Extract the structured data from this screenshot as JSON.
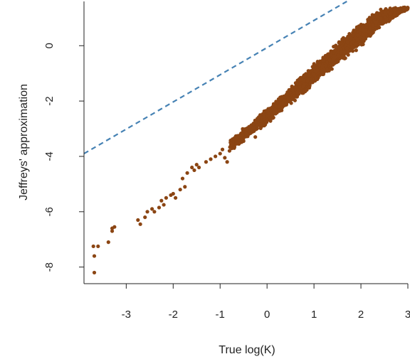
{
  "chart_data": {
    "type": "scatter",
    "title": "",
    "xlabel": "True log(K)",
    "ylabel": "Jeffreys' approximation",
    "xlim": [
      -3.9,
      3.0
    ],
    "ylim": [
      -8.6,
      1.6
    ],
    "xticks": [
      -3,
      -2,
      -1,
      0,
      1,
      2,
      3
    ],
    "yticks": [
      -8,
      -6,
      -4,
      -2,
      0
    ],
    "grid": false,
    "point_color": "#8b4513",
    "line_color": "#4682b4",
    "reference_line": {
      "style": "dashed",
      "from": [
        -3.9,
        -3.9
      ],
      "to": [
        1.7,
        1.6
      ]
    },
    "points": [
      [
        -3.68,
        -8.2
      ],
      [
        -3.7,
        -7.25
      ],
      [
        -3.6,
        -7.25
      ],
      [
        -3.68,
        -7.6
      ],
      [
        -3.38,
        -7.1
      ],
      [
        -3.3,
        -6.6
      ],
      [
        -3.25,
        -6.55
      ],
      [
        -3.3,
        -6.7
      ],
      [
        -2.75,
        -6.3
      ],
      [
        -2.7,
        -6.45
      ],
      [
        -2.6,
        -6.2
      ],
      [
        -2.55,
        -6.0
      ],
      [
        -2.45,
        -5.9
      ],
      [
        -2.4,
        -6.0
      ],
      [
        -2.3,
        -5.85
      ],
      [
        -2.25,
        -5.6
      ],
      [
        -2.2,
        -5.75
      ],
      [
        -2.15,
        -5.5
      ],
      [
        -2.05,
        -5.4
      ],
      [
        -2.0,
        -5.35
      ],
      [
        -1.95,
        -5.5
      ],
      [
        -1.85,
        -5.2
      ],
      [
        -1.75,
        -5.1
      ],
      [
        -1.8,
        -4.8
      ],
      [
        -1.7,
        -4.6
      ],
      [
        -1.6,
        -4.4
      ],
      [
        -1.55,
        -4.5
      ],
      [
        -1.5,
        -4.3
      ],
      [
        -1.45,
        -4.4
      ],
      [
        -1.3,
        -4.2
      ],
      [
        -1.2,
        -4.1
      ],
      [
        -1.1,
        -4.0
      ],
      [
        -1.0,
        -3.9
      ],
      [
        -0.95,
        -3.75
      ],
      [
        -0.9,
        -4.05
      ],
      [
        -0.85,
        -4.2
      ],
      [
        -0.8,
        -3.8
      ],
      [
        -0.75,
        -3.6
      ],
      [
        -0.7,
        -3.7
      ],
      [
        -0.6,
        -3.55
      ],
      [
        -0.55,
        -3.4
      ],
      [
        -0.5,
        -3.45
      ],
      [
        -0.4,
        -3.2
      ],
      [
        -0.3,
        -3.1
      ],
      [
        -0.25,
        -3.3
      ]
    ],
    "dense_band": [
      [
        -0.8,
        -3.9,
        -3.3
      ],
      [
        -0.4,
        -3.4,
        -2.8
      ],
      [
        0.0,
        -2.9,
        -2.2
      ],
      [
        0.4,
        -2.3,
        -1.6
      ],
      [
        0.8,
        -1.8,
        -0.9
      ],
      [
        1.2,
        -1.2,
        -0.3
      ],
      [
        1.6,
        -0.6,
        0.3
      ],
      [
        2.0,
        -0.1,
        0.9
      ],
      [
        2.4,
        0.6,
        1.4
      ],
      [
        2.8,
        1.1,
        1.4
      ],
      [
        3.0,
        1.3,
        1.4
      ]
    ],
    "band_point_count": 2600
  }
}
